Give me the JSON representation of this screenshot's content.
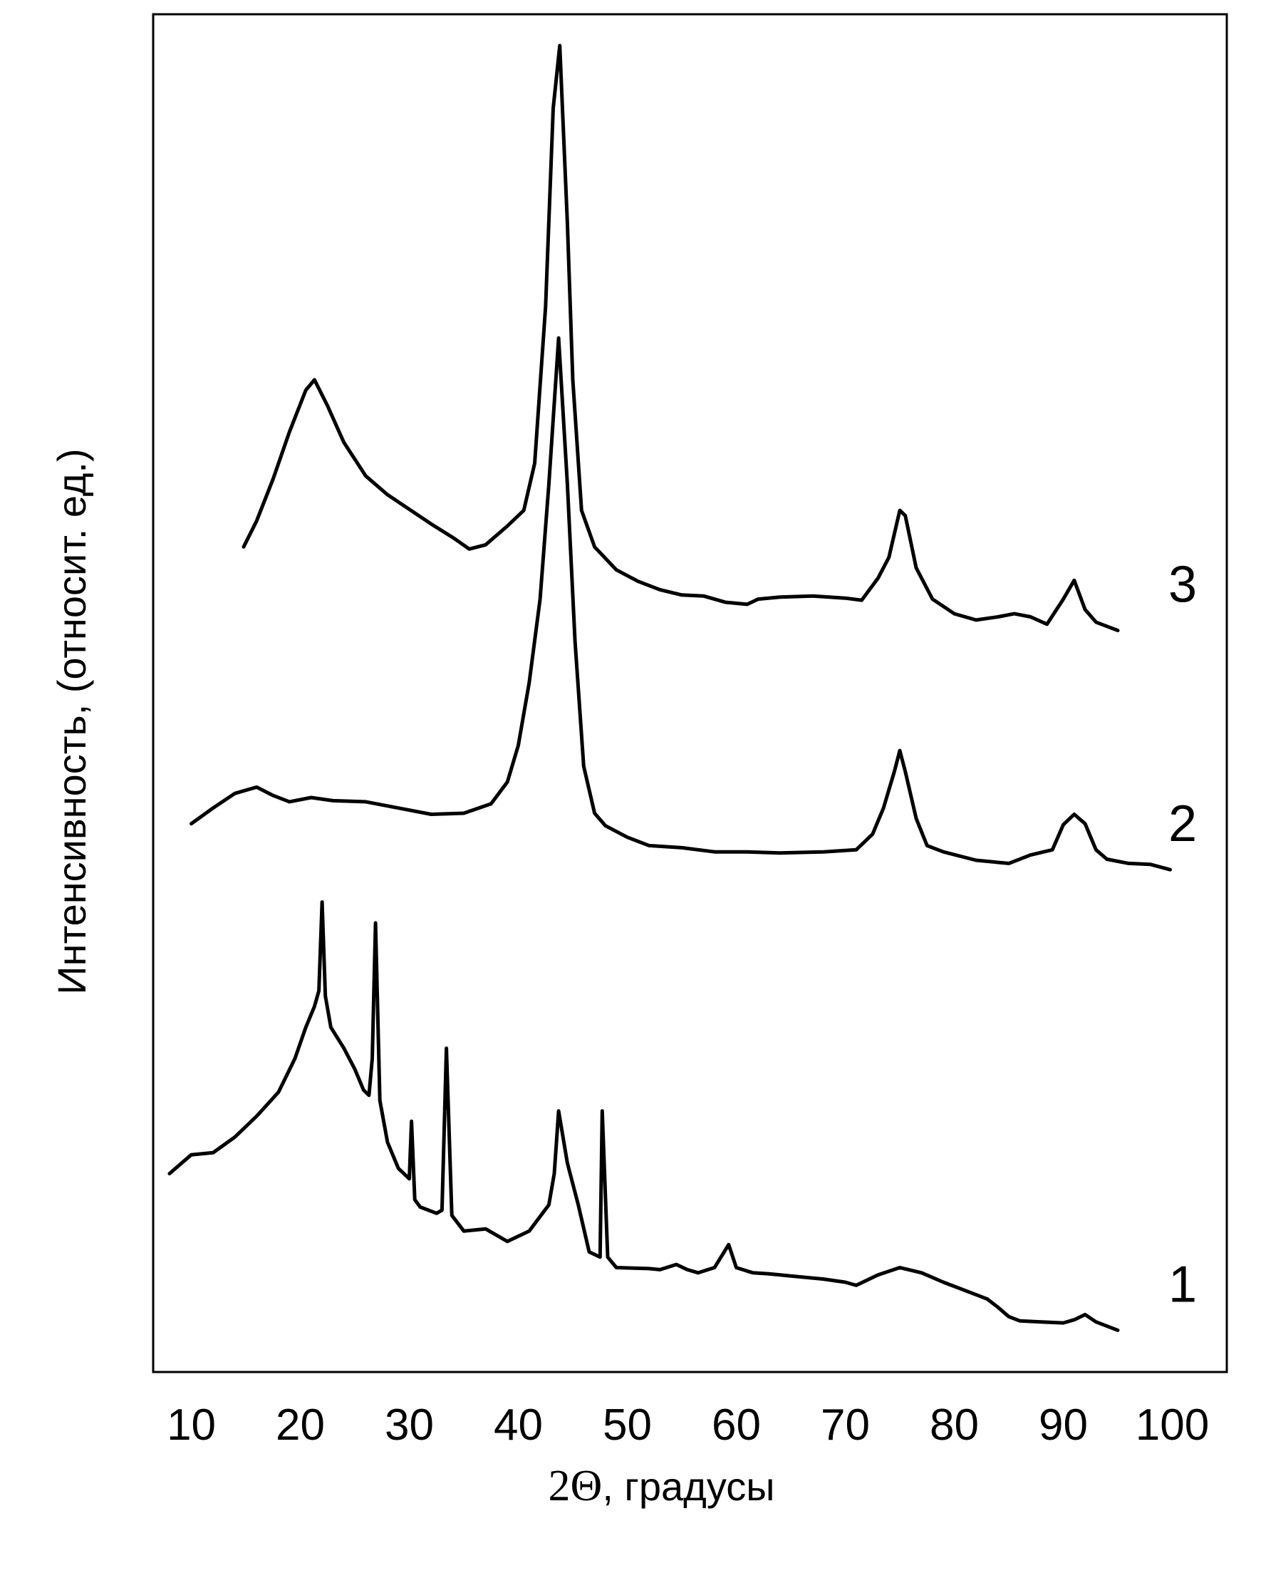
{
  "chart_data": {
    "type": "line",
    "xlabel_prefix": "2Θ",
    "xlabel_suffix": ", градусы",
    "ylabel": "Интенсивность, (относит. ед.)",
    "xlim": [
      6.5,
      105
    ],
    "ylim": [
      0,
      130
    ],
    "grid": false,
    "x_ticks": [
      10,
      20,
      30,
      40,
      50,
      60,
      70,
      80,
      90,
      100
    ],
    "series": [
      {
        "name": "1",
        "points": [
          [
            8,
            19
          ],
          [
            10,
            20.8
          ],
          [
            12,
            21
          ],
          [
            14,
            22.5
          ],
          [
            16,
            24.5
          ],
          [
            18,
            26.8
          ],
          [
            19.5,
            30
          ],
          [
            20.5,
            33
          ],
          [
            21.3,
            35
          ],
          [
            21.7,
            36.5
          ],
          [
            22,
            45
          ],
          [
            22.3,
            36
          ],
          [
            22.8,
            33
          ],
          [
            24,
            31
          ],
          [
            25,
            29
          ],
          [
            25.8,
            27
          ],
          [
            26.3,
            26.5
          ],
          [
            26.6,
            30
          ],
          [
            26.9,
            43
          ],
          [
            27.3,
            26
          ],
          [
            28,
            22
          ],
          [
            29,
            19.5
          ],
          [
            30,
            18.5
          ],
          [
            30.2,
            24
          ],
          [
            30.5,
            16.5
          ],
          [
            31,
            15.8
          ],
          [
            32.5,
            15.2
          ],
          [
            33,
            15.5
          ],
          [
            33.4,
            31
          ],
          [
            33.9,
            15
          ],
          [
            35,
            13.5
          ],
          [
            37,
            13.7
          ],
          [
            39,
            12.5
          ],
          [
            41,
            13.5
          ],
          [
            42.8,
            16
          ],
          [
            43.3,
            19
          ],
          [
            43.7,
            25
          ],
          [
            44.5,
            20
          ],
          [
            45.5,
            16
          ],
          [
            46.5,
            11.5
          ],
          [
            47.5,
            11
          ],
          [
            47.7,
            25
          ],
          [
            48.2,
            11
          ],
          [
            49,
            10
          ],
          [
            52,
            9.9
          ],
          [
            53,
            9.8
          ],
          [
            54.5,
            10.3
          ],
          [
            55.5,
            9.8
          ],
          [
            56.5,
            9.5
          ],
          [
            58,
            10
          ],
          [
            59.3,
            12.2
          ],
          [
            60,
            10
          ],
          [
            61.5,
            9.5
          ],
          [
            63,
            9.4
          ],
          [
            65,
            9.2
          ],
          [
            68,
            8.9
          ],
          [
            70,
            8.6
          ],
          [
            71,
            8.3
          ],
          [
            73,
            9.3
          ],
          [
            75,
            10
          ],
          [
            77,
            9.5
          ],
          [
            79,
            8.6
          ],
          [
            81,
            7.8
          ],
          [
            83,
            7
          ],
          [
            84,
            6.2
          ],
          [
            85,
            5.3
          ],
          [
            86,
            4.9
          ],
          [
            88,
            4.8
          ],
          [
            90,
            4.7
          ],
          [
            91,
            5
          ],
          [
            92,
            5.5
          ],
          [
            93,
            4.8
          ],
          [
            95,
            4
          ]
        ]
      },
      {
        "name": "2",
        "points": [
          [
            10,
            52.5
          ],
          [
            12,
            54
          ],
          [
            14,
            55.4
          ],
          [
            16,
            56
          ],
          [
            17.5,
            55.2
          ],
          [
            19,
            54.6
          ],
          [
            21,
            55
          ],
          [
            23,
            54.7
          ],
          [
            26,
            54.6
          ],
          [
            29,
            54
          ],
          [
            32,
            53.4
          ],
          [
            35,
            53.5
          ],
          [
            37.5,
            54.4
          ],
          [
            39,
            56.5
          ],
          [
            40,
            60
          ],
          [
            41,
            66
          ],
          [
            42,
            74
          ],
          [
            42.8,
            85
          ],
          [
            43.7,
            99
          ],
          [
            44.5,
            85
          ],
          [
            45.2,
            70
          ],
          [
            46,
            58
          ],
          [
            47,
            53.5
          ],
          [
            48,
            52.3
          ],
          [
            50,
            51.2
          ],
          [
            52,
            50.4
          ],
          [
            55,
            50.2
          ],
          [
            58,
            49.8
          ],
          [
            61,
            49.8
          ],
          [
            64,
            49.7
          ],
          [
            68,
            49.8
          ],
          [
            71,
            50
          ],
          [
            72.5,
            51.5
          ],
          [
            73.5,
            54
          ],
          [
            74.5,
            57.5
          ],
          [
            75,
            59.5
          ],
          [
            75.5,
            57.5
          ],
          [
            76.5,
            53
          ],
          [
            77.5,
            50.4
          ],
          [
            79,
            49.8
          ],
          [
            82,
            49
          ],
          [
            85,
            48.7
          ],
          [
            87,
            49.5
          ],
          [
            89,
            50
          ],
          [
            90,
            52.4
          ],
          [
            91,
            53.4
          ],
          [
            92,
            52.5
          ],
          [
            93,
            50
          ],
          [
            94,
            49.1
          ],
          [
            96,
            48.7
          ],
          [
            98,
            48.6
          ],
          [
            99.8,
            48.1
          ]
        ]
      },
      {
        "name": "3",
        "points": [
          [
            14.8,
            79
          ],
          [
            16,
            81.5
          ],
          [
            17.5,
            85.5
          ],
          [
            19,
            90
          ],
          [
            20.5,
            94
          ],
          [
            21.3,
            95
          ],
          [
            22.5,
            92.5
          ],
          [
            24,
            89
          ],
          [
            26,
            85.8
          ],
          [
            28,
            84
          ],
          [
            30,
            82.6
          ],
          [
            32,
            81.2
          ],
          [
            34,
            79.9
          ],
          [
            35.5,
            78.8
          ],
          [
            37,
            79.2
          ],
          [
            39,
            81
          ],
          [
            40.5,
            82.5
          ],
          [
            41.5,
            87
          ],
          [
            42.5,
            102
          ],
          [
            43.2,
            121
          ],
          [
            43.8,
            127
          ],
          [
            44.5,
            110
          ],
          [
            45,
            95
          ],
          [
            45.8,
            82.5
          ],
          [
            47,
            79
          ],
          [
            49,
            76.8
          ],
          [
            51,
            75.7
          ],
          [
            53,
            74.9
          ],
          [
            55,
            74.4
          ],
          [
            57,
            74.3
          ],
          [
            59,
            73.7
          ],
          [
            61,
            73.5
          ],
          [
            62,
            74
          ],
          [
            64,
            74.2
          ],
          [
            67,
            74.3
          ],
          [
            70,
            74.1
          ],
          [
            71.5,
            73.9
          ],
          [
            73,
            76
          ],
          [
            74,
            78
          ],
          [
            75,
            82.5
          ],
          [
            75.5,
            82
          ],
          [
            76.5,
            77
          ],
          [
            78,
            74
          ],
          [
            80,
            72.6
          ],
          [
            82,
            72
          ],
          [
            84,
            72.3
          ],
          [
            85.5,
            72.6
          ],
          [
            87,
            72.3
          ],
          [
            88.5,
            71.6
          ],
          [
            90,
            74
          ],
          [
            91,
            75.8
          ],
          [
            92,
            73
          ],
          [
            93,
            71.8
          ],
          [
            95,
            71
          ]
        ]
      }
    ]
  }
}
